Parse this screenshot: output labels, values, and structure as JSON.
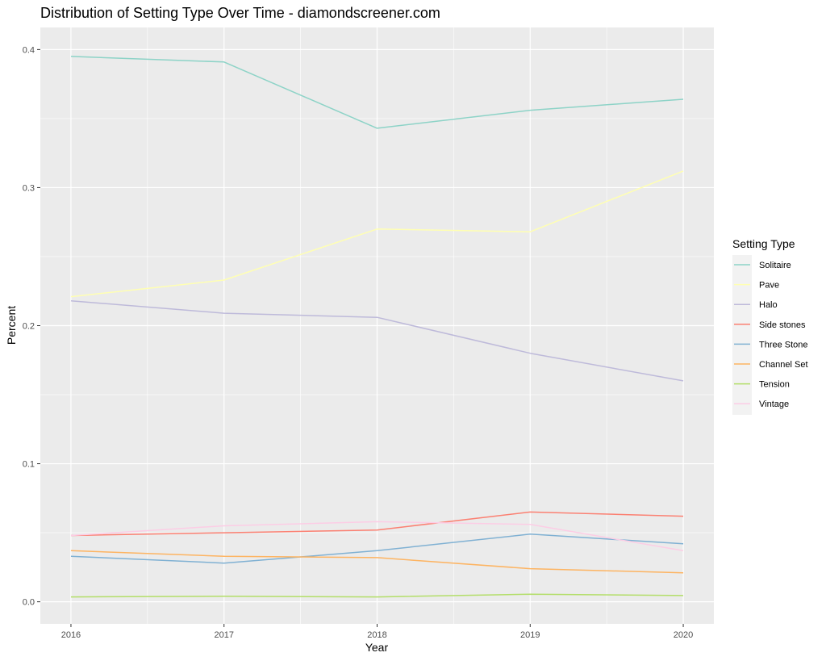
{
  "chart_data": {
    "type": "line",
    "title": "Distribution of Setting Type Over Time - diamondscreener.com",
    "xlabel": "Year",
    "ylabel": "Percent",
    "x": [
      2016,
      2017,
      2018,
      2019,
      2020
    ],
    "x_ticks": [
      "2016",
      "2017",
      "2018",
      "2019",
      "2020"
    ],
    "y_ticks": [
      "0.0",
      "0.1",
      "0.2",
      "0.3",
      "0.4"
    ],
    "xlim": [
      2015.8,
      2020.2
    ],
    "ylim": [
      -0.016,
      0.416
    ],
    "grid": true,
    "legend_title": "Setting Type",
    "legend_position": "right",
    "panel_background": "#ebebeb",
    "series": [
      {
        "name": "Solitaire",
        "color": "#8dd3c7",
        "values": [
          0.395,
          0.391,
          0.343,
          0.356,
          0.364
        ]
      },
      {
        "name": "Pave",
        "color": "#ffffb3",
        "values": [
          0.221,
          0.233,
          0.27,
          0.268,
          0.312
        ]
      },
      {
        "name": "Halo",
        "color": "#bebada",
        "values": [
          0.218,
          0.209,
          0.206,
          0.18,
          0.16
        ]
      },
      {
        "name": "Side stones",
        "color": "#fb8072",
        "values": [
          0.048,
          0.05,
          0.052,
          0.065,
          0.062
        ]
      },
      {
        "name": "Three Stone",
        "color": "#80b1d3",
        "values": [
          0.033,
          0.028,
          0.037,
          0.049,
          0.042
        ]
      },
      {
        "name": "Channel Set",
        "color": "#fdb462",
        "values": [
          0.037,
          0.033,
          0.032,
          0.024,
          0.021
        ]
      },
      {
        "name": "Tension",
        "color": "#b3de69",
        "values": [
          0.0035,
          0.004,
          0.0035,
          0.0055,
          0.0045
        ]
      },
      {
        "name": "Vintage",
        "color": "#fccde5",
        "values": [
          0.048,
          0.055,
          0.058,
          0.056,
          0.037
        ]
      }
    ]
  }
}
